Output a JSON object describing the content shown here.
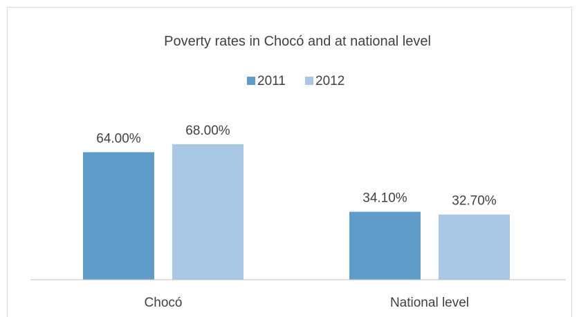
{
  "chart_data": {
    "type": "bar",
    "title": "Poverty rates in Chocó and at national level",
    "categories": [
      "Chocó",
      "National level"
    ],
    "series": [
      {
        "name": "2011",
        "values": [
          64.0,
          34.1
        ],
        "labels": [
          "64.00%",
          "34.10%"
        ],
        "color": "#5f9cc9"
      },
      {
        "name": "2012",
        "values": [
          68.0,
          32.7
        ],
        "labels": [
          "68.00%",
          "32.70%"
        ],
        "color": "#a8c8e6"
      }
    ],
    "xlabel": "",
    "ylabel": "",
    "ylim": [
      0,
      100
    ],
    "legend": "top",
    "grid": false,
    "axis_line_color": "#bfbfbf"
  }
}
